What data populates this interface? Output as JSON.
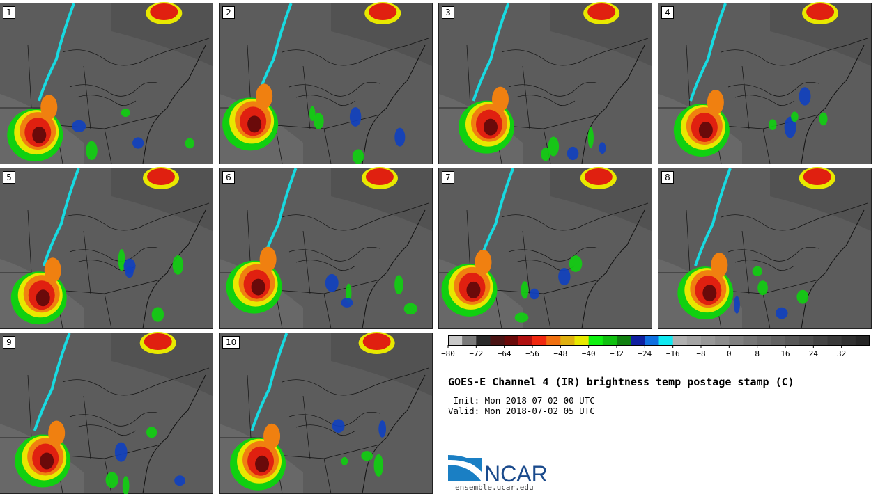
{
  "panels": [
    {
      "label": "1",
      "member": 1
    },
    {
      "label": "2",
      "member": 2
    },
    {
      "label": "3",
      "member": 3
    },
    {
      "label": "4",
      "member": 4
    },
    {
      "label": "5",
      "member": 5
    },
    {
      "label": "6",
      "member": 6
    },
    {
      "label": "7",
      "member": 7
    },
    {
      "label": "8",
      "member": 8
    },
    {
      "label": "9",
      "member": 9
    },
    {
      "label": "10",
      "member": 10
    }
  ],
  "title": "GOES-E Channel 4 (IR) brightness temp postage stamp (C)",
  "init_text": " Init: Mon 2018-07-02 00 UTC",
  "valid_text": "Valid: Mon 2018-07-02 05 UTC",
  "logo": {
    "text": "NCAR",
    "url": "ensemble.ucar.edu"
  },
  "colorbar": {
    "min": -80,
    "max": 40,
    "step": 4,
    "tick_labels": [
      "−80",
      "−72",
      "−64",
      "−56",
      "−48",
      "−40",
      "−32",
      "−24",
      "−16",
      "−8",
      "0",
      "8",
      "16",
      "24",
      "32"
    ],
    "colors": [
      "#c8c8c8",
      "#7a7a7a",
      "#2a2a2a",
      "#4a1414",
      "#6a0a0a",
      "#b01010",
      "#f02810",
      "#f07010",
      "#e0b010",
      "#e8e800",
      "#10f010",
      "#10c010",
      "#108010",
      "#1020a0",
      "#1070e0",
      "#10e8f0",
      "#b0b0b0",
      "#a4a4a4",
      "#989898",
      "#8c8c8c",
      "#808080",
      "#767676",
      "#6c6c6c",
      "#626262",
      "#585858",
      "#4e4e4e",
      "#444444",
      "#3a3a3a",
      "#303030",
      "#262626"
    ]
  },
  "palette": {
    "cold_top": "#6a0a0a",
    "red": "#e02010",
    "orange": "#f08010",
    "yellow": "#e8e800",
    "green": "#10d010",
    "blue": "#1040c0",
    "cyan": "#10e8f0",
    "background": "#5f5f5f"
  }
}
